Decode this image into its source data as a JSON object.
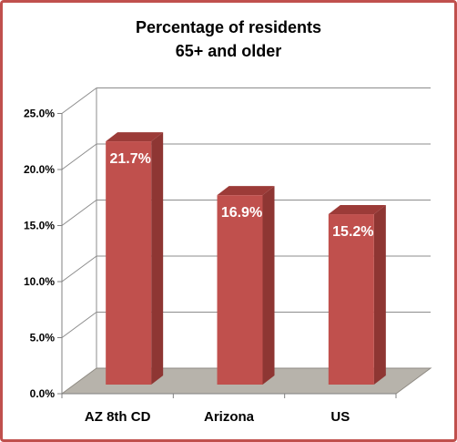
{
  "chart_data": {
    "type": "bar",
    "title_line1": "Percentage of residents",
    "title_line2": "65+ and older",
    "categories": [
      "AZ 8th CD",
      "Arizona",
      "US"
    ],
    "values": [
      21.7,
      16.9,
      15.2
    ],
    "data_labels": [
      "21.7%",
      "16.9%",
      "15.2%"
    ],
    "y_ticks": [
      0,
      5,
      10,
      15,
      20,
      25
    ],
    "y_tick_labels": [
      "0.0%",
      "5.0%",
      "10.0%",
      "15.0%",
      "20.0%",
      "25.0%"
    ],
    "ylim": [
      0,
      25
    ],
    "grid": true,
    "legend": "none",
    "style": "3d-column",
    "colors": {
      "bar_front": "#c0504d",
      "bar_side": "#8e3633",
      "bar_top": "#9c3b38",
      "floor": "#b7b3ab",
      "frame": "#c0504d"
    }
  }
}
